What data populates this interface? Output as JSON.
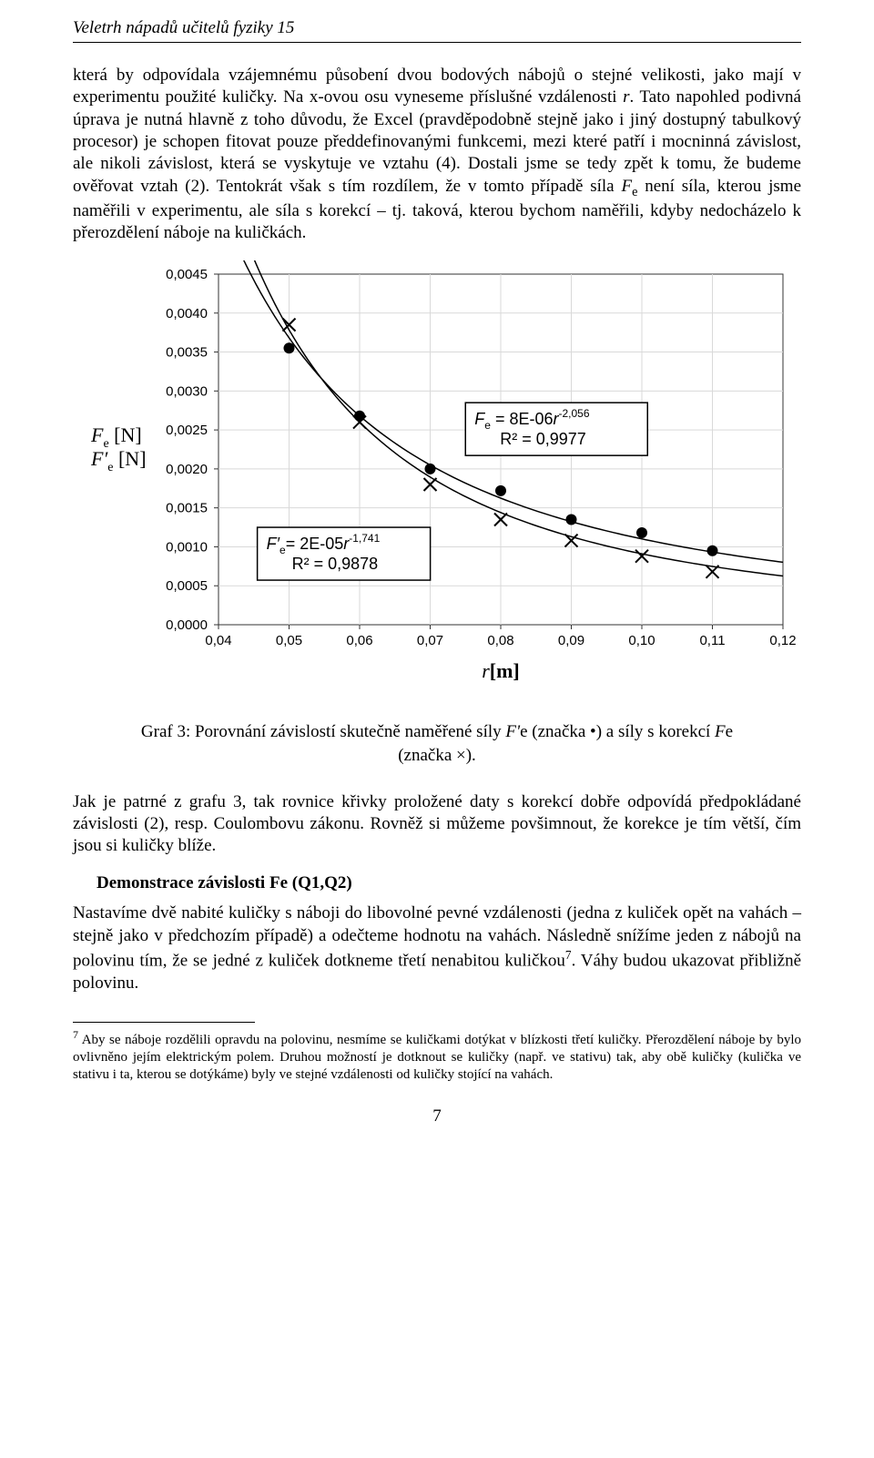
{
  "header": {
    "title": "Veletrh nápadů učitelů fyziky 15"
  },
  "para1_html": "která by odpovídala vzájemnému působení dvou bodových nábojů o stejné velikosti, jako mají v experimentu použité kuličky. Na x-ovou osu vyneseme příslušné vzdálenosti <i>r</i>. Tato napohled podivná úprava je nutná hlavně z toho důvodu, že Excel (pravděpodobně stejně jako i jiný dostupný tabulkový procesor) je schopen fitovat pouze předdefinovanými funkcemi, mezi které patří i mocninná závislost, ale nikoli závislost, která se vyskytuje ve vztahu (4). Dostali jsme se tedy zpět k tomu, že budeme ověřovat vztah (2). Tentokrát však s tím rozdílem, že v tomto případě síla <i>F</i><span class='sub'>e</span> není síla, kterou jsme naměřili v experimentu, ale síla s korekcí – tj. taková, kterou bychom naměřili, kdyby nedocházelo k přerozdělení náboje na kuličkách.",
  "chart": {
    "type": "scatter",
    "background_color": "#ffffff",
    "grid_color": "#d9d9d9",
    "border_color": "#333333",
    "x": {
      "label": "r[m]",
      "min": 0.04,
      "max": 0.12,
      "step": 0.01,
      "ticks": [
        "0,04",
        "0,05",
        "0,06",
        "0,07",
        "0,08",
        "0,09",
        "0,10",
        "0,11",
        "0,12"
      ],
      "tick_fontsize": 15
    },
    "y": {
      "label_lines": [
        "F_e [N]",
        "F'_e [N]"
      ],
      "min": 0.0,
      "max": 0.0045,
      "step": 0.0005,
      "ticks": [
        "0,0000",
        "0,0005",
        "0,0010",
        "0,0015",
        "0,0020",
        "0,0025",
        "0,0030",
        "0,0035",
        "0,0040",
        "0,0045"
      ],
      "tick_fontsize": 15
    },
    "series": [
      {
        "name": "F'_e",
        "marker": "dot",
        "color": "#000000",
        "marker_size": 6,
        "points": [
          {
            "x": 0.05,
            "y": 0.00355
          },
          {
            "x": 0.06,
            "y": 0.00268
          },
          {
            "x": 0.07,
            "y": 0.002
          },
          {
            "x": 0.08,
            "y": 0.00172
          },
          {
            "x": 0.09,
            "y": 0.00135
          },
          {
            "x": 0.1,
            "y": 0.00118
          },
          {
            "x": 0.11,
            "y": 0.00095
          }
        ],
        "fit_curve_color": "#000000",
        "fit_curve_width": 1.5,
        "fit_label_lines": [
          "F'_e= 2E-05r^-1,741",
          "R² = 0,9878"
        ]
      },
      {
        "name": "F_e",
        "marker": "x",
        "color": "#000000",
        "marker_size": 7,
        "points": [
          {
            "x": 0.05,
            "y": 0.00385
          },
          {
            "x": 0.06,
            "y": 0.0026
          },
          {
            "x": 0.07,
            "y": 0.0018
          },
          {
            "x": 0.08,
            "y": 0.00135
          },
          {
            "x": 0.09,
            "y": 0.00108
          },
          {
            "x": 0.1,
            "y": 0.00088
          },
          {
            "x": 0.11,
            "y": 0.00068
          }
        ],
        "fit_curve_color": "#000000",
        "fit_curve_width": 1.5,
        "fit_label_lines": [
          "F_e = 8E-06r^-2,056",
          "R² = 0,9977"
        ]
      }
    ],
    "fit_box_border": "#000000",
    "fit_box_bg": "#ffffff",
    "fit_fontsize": 18,
    "axis_label_fontsize": 22
  },
  "caption_html": "Graf 3: Porovnání závislostí skutečně naměřené síly <i>F'</i><span class='sub'>e</span> (značka •) a síly s korekcí <i>F</i><span class='sub'>e</span><br/>(značka ×).",
  "para2_html": "Jak je patrné z grafu 3, tak rovnice křivky proložené daty s korekcí dobře odpovídá předpokládané závislosti (2), resp. Coulombovu zákonu. Rovněž si můžeme povšimnout, že korekce je tím větší, čím jsou si kuličky blíže.",
  "section_head_html": "Demonstrace závislosti F<span class='sub'>e</span> (Q<span class='sub'>1</span>,Q<span class='sub'>2</span>)",
  "para3_html": "Nastavíme dvě nabité kuličky s náboji do libovolné pevné vzdálenosti (jedna z kuliček opět na vahách – stejně jako v předchozím případě) a odečteme hodnotu na vahách. Následně snížíme jeden z nábojů na polovinu tím, že se jedné z kuliček dotkneme třetí nenabitou kuličkou<sup style='font-size:0.7em'>7</sup>. Váhy budou ukazovat přibližně polovinu.",
  "footnote_html": "<sup style='font-size:0.8em'>7</sup> Aby se náboje rozdělili opravdu na polovinu, nesmíme se kuličkami dotýkat v blízkosti třetí kuličky. Přerozdělení náboje by bylo ovlivněno jejím elektrickým polem. Druhou možností je dotknout se kuličky (např. ve stativu) tak, aby obě kuličky (kulička ve stativu i ta, kterou se dotýkáme) byly ve stejné vzdálenosti od kuličky stojící na vahách.",
  "page_number": "7"
}
